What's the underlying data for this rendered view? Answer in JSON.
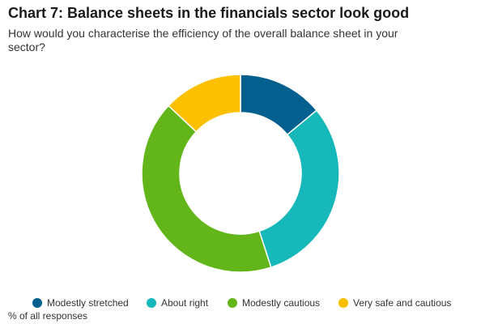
{
  "title": "Chart 7: Balance sheets in the financials sector look good",
  "subtitle": "How would you characterise the efficiency of the overall balance sheet in your sector?",
  "note": "% of all responses",
  "chart_data": {
    "type": "pie",
    "style": "donut",
    "start_at": "12 o'clock",
    "direction": "clockwise",
    "legend_position": "bottom",
    "categories": [
      "Modestly stretched",
      "About right",
      "Modestly cautious",
      "Very safe and cautious"
    ],
    "values": [
      14,
      31,
      42,
      13
    ],
    "colors": [
      "#035f8e",
      "#17b8b9",
      "#62b61a",
      "#fdc000"
    ]
  }
}
